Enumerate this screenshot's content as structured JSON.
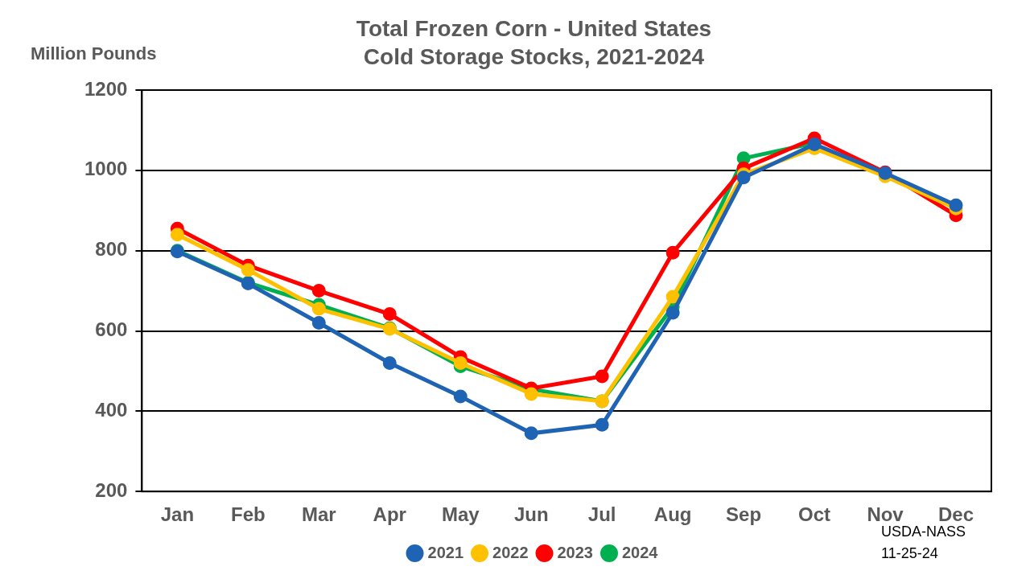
{
  "chart_data": {
    "type": "line",
    "title": [
      "Total Frozen Corn - United States",
      "Cold Storage Stocks, 2021-2024"
    ],
    "y_label": "Million Pounds",
    "annotations": [
      "USDA-NASS",
      "11-25-24"
    ],
    "categories": [
      "Jan",
      "Feb",
      "Mar",
      "Apr",
      "May",
      "Jun",
      "Jul",
      "Aug",
      "Sep",
      "Oct",
      "Nov",
      "Dec"
    ],
    "series": [
      {
        "name": "2021",
        "color": "#1f64b4",
        "values": [
          798,
          718,
          620,
          520,
          437,
          345,
          366,
          645,
          982,
          1065,
          993,
          913
        ]
      },
      {
        "name": "2022",
        "color": "#ffc000",
        "values": [
          840,
          752,
          655,
          605,
          520,
          443,
          425,
          685,
          990,
          1055,
          985,
          905
        ]
      },
      {
        "name": "2023",
        "color": "#ff0000",
        "values": [
          855,
          763,
          700,
          642,
          535,
          457,
          487,
          795,
          1005,
          1080,
          995,
          888
        ]
      },
      {
        "name": "2024",
        "color": "#00b050",
        "values": [
          800,
          720,
          665,
          607,
          512,
          455,
          425,
          660,
          1030,
          1068,
          null,
          null
        ]
      }
    ],
    "ylim": [
      200,
      1200
    ],
    "yticks": [
      200,
      400,
      600,
      800,
      1000,
      1200
    ],
    "grid": true,
    "legend": "bottom",
    "marker": "circle"
  }
}
